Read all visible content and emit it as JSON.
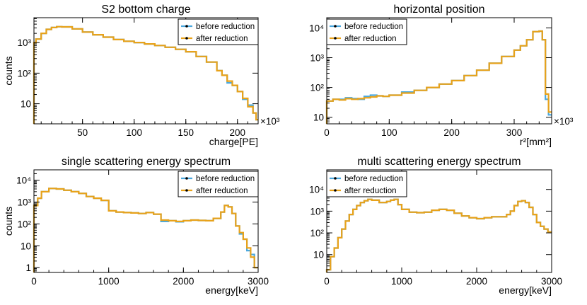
{
  "colors": {
    "before": "#4aa8de",
    "after": "#e8a21a",
    "axis": "#000000"
  },
  "chart_data": [
    {
      "type": "line",
      "style": "step-histogram",
      "title": "S2 bottom charge",
      "xlabel": "charge[PE]",
      "ylabel": "counts",
      "x_multiplier_label": "×10³",
      "xlim": [
        3,
        220
      ],
      "ylog": true,
      "ylim": [
        2.2,
        6500
      ],
      "xticks": [
        50,
        100,
        150,
        200
      ],
      "xtick_labels": [
        "50",
        "100",
        "150",
        "200"
      ],
      "yticks": [
        10,
        100,
        1000
      ],
      "ytick_labels": [
        "10",
        "10²",
        "10³"
      ],
      "legend": {
        "position": "top-right",
        "entries": [
          "before reduction",
          "after reduction"
        ]
      },
      "series": [
        {
          "name": "after reduction",
          "x": [
            3,
            5,
            10,
            15,
            20,
            25,
            30,
            40,
            50,
            60,
            70,
            80,
            90,
            100,
            110,
            120,
            130,
            140,
            150,
            160,
            170,
            180,
            185,
            190,
            195,
            200,
            205,
            210,
            215,
            218
          ],
          "values": [
            1000,
            1300,
            2000,
            2700,
            3100,
            3300,
            3250,
            2800,
            2200,
            1800,
            1500,
            1250,
            1100,
            1000,
            900,
            800,
            700,
            600,
            500,
            350,
            230,
            120,
            85,
            55,
            40,
            25,
            15,
            8,
            5,
            3
          ]
        },
        {
          "name": "before reduction",
          "x": [
            3,
            5,
            10,
            15,
            20,
            25,
            30,
            40,
            50,
            60,
            70,
            80,
            90,
            100,
            110,
            120,
            130,
            140,
            150,
            160,
            170,
            180,
            185,
            190,
            195,
            200,
            205,
            210,
            215,
            218
          ],
          "values": [
            1000,
            1300,
            2000,
            2700,
            3100,
            3300,
            3250,
            2800,
            2200,
            1800,
            1500,
            1250,
            1100,
            1000,
            900,
            800,
            700,
            600,
            500,
            350,
            230,
            120,
            85,
            48,
            40,
            25,
            14,
            9,
            5,
            3
          ]
        }
      ]
    },
    {
      "type": "line",
      "style": "step-histogram",
      "title": "horizontal position",
      "xlabel": "r²[mm²]",
      "ylabel": "",
      "x_multiplier_label": "×10³",
      "xlim": [
        0,
        360
      ],
      "ylog": true,
      "ylim": [
        6,
        22000
      ],
      "xticks": [
        0,
        100,
        200,
        300
      ],
      "xtick_labels": [
        "0",
        "100",
        "200",
        "300"
      ],
      "yticks": [
        10,
        100,
        1000,
        10000
      ],
      "ytick_labels": [
        "10",
        "10²",
        "10³",
        "10⁴"
      ],
      "legend": {
        "position": "top-left",
        "entries": [
          "before reduction",
          "after reduction"
        ]
      },
      "series": [
        {
          "name": "after reduction",
          "x": [
            0,
            10,
            20,
            30,
            40,
            50,
            60,
            70,
            80,
            90,
            100,
            120,
            140,
            160,
            180,
            200,
            220,
            240,
            260,
            280,
            300,
            310,
            320,
            330,
            340,
            345,
            350,
            355
          ],
          "values": [
            35,
            40,
            38,
            42,
            40,
            42,
            45,
            48,
            52,
            50,
            55,
            65,
            80,
            100,
            130,
            170,
            250,
            380,
            650,
            1100,
            1800,
            2500,
            4000,
            7500,
            7800,
            4000,
            60,
            15
          ]
        },
        {
          "name": "before reduction",
          "x": [
            0,
            10,
            20,
            30,
            40,
            50,
            60,
            70,
            80,
            90,
            100,
            120,
            140,
            160,
            180,
            200,
            220,
            240,
            260,
            280,
            300,
            310,
            320,
            330,
            340,
            345,
            350,
            355
          ],
          "values": [
            35,
            40,
            40,
            45,
            42,
            40,
            50,
            55,
            52,
            50,
            55,
            70,
            80,
            100,
            130,
            170,
            250,
            380,
            650,
            1100,
            1800,
            2500,
            4000,
            7500,
            7800,
            4000,
            40,
            12
          ]
        }
      ]
    },
    {
      "type": "line",
      "style": "step-histogram",
      "title": "single scattering energy spectrum",
      "xlabel": "energy[keV]",
      "ylabel": "counts",
      "xlim": [
        0,
        3000
      ],
      "ylog": true,
      "ylim": [
        0.6,
        30000
      ],
      "xticks": [
        0,
        1000,
        2000,
        3000
      ],
      "xtick_labels": [
        "0",
        "1000",
        "2000",
        "3000"
      ],
      "yticks": [
        1,
        10,
        100,
        1000,
        10000
      ],
      "ytick_labels": [
        "1",
        "10",
        "10²",
        "10³",
        "10⁴"
      ],
      "legend": {
        "position": "top-right",
        "entries": [
          "before reduction",
          "after reduction"
        ]
      },
      "series": [
        {
          "name": "after reduction",
          "x": [
            0,
            50,
            100,
            200,
            300,
            400,
            500,
            600,
            700,
            800,
            900,
            1000,
            1100,
            1200,
            1300,
            1400,
            1500,
            1600,
            1700,
            1800,
            1900,
            2000,
            2100,
            2200,
            2300,
            2400,
            2500,
            2550,
            2600,
            2650,
            2700,
            2750,
            2800,
            2850,
            2900,
            2950
          ],
          "values": [
            700,
            1500,
            3000,
            4200,
            4000,
            3500,
            3000,
            2500,
            1800,
            1500,
            1200,
            400,
            350,
            330,
            320,
            300,
            330,
            280,
            150,
            140,
            130,
            140,
            150,
            145,
            140,
            180,
            350,
            700,
            600,
            300,
            80,
            40,
            20,
            8,
            3,
            1
          ]
        },
        {
          "name": "before reduction",
          "x": [
            0,
            50,
            100,
            200,
            300,
            400,
            500,
            600,
            700,
            800,
            900,
            1000,
            1100,
            1200,
            1300,
            1400,
            1500,
            1600,
            1700,
            1800,
            1900,
            2000,
            2100,
            2200,
            2300,
            2400,
            2500,
            2550,
            2600,
            2650,
            2700,
            2750,
            2800,
            2850,
            2900,
            2950
          ],
          "values": [
            700,
            1500,
            3000,
            4200,
            4000,
            3500,
            3000,
            2500,
            1800,
            1500,
            1200,
            400,
            350,
            330,
            320,
            300,
            330,
            280,
            130,
            140,
            125,
            140,
            150,
            145,
            140,
            180,
            350,
            700,
            600,
            300,
            80,
            35,
            20,
            6,
            4,
            1
          ]
        }
      ]
    },
    {
      "type": "line",
      "style": "step-histogram",
      "title": "multi scattering energy spectrum",
      "xlabel": "energy[keV]",
      "ylabel": "",
      "xlim": [
        0,
        3000
      ],
      "ylog": true,
      "ylim": [
        1.5,
        80000
      ],
      "xticks": [
        0,
        1000,
        2000,
        3000
      ],
      "xtick_labels": [
        "0",
        "1000",
        "2000",
        "3000"
      ],
      "yticks": [
        10,
        100,
        1000,
        10000
      ],
      "ytick_labels": [
        "10",
        "10²",
        "10³",
        "10⁴"
      ],
      "legend": {
        "position": "top-left",
        "entries": [
          "before reduction",
          "after reduction"
        ]
      },
      "series": [
        {
          "name": "after reduction",
          "x": [
            0,
            50,
            100,
            150,
            200,
            250,
            300,
            350,
            400,
            450,
            500,
            550,
            600,
            700,
            800,
            850,
            900,
            950,
            1000,
            1100,
            1200,
            1300,
            1400,
            1500,
            1600,
            1700,
            1800,
            1900,
            2000,
            2100,
            2200,
            2300,
            2400,
            2450,
            2500,
            2550,
            2600,
            2650,
            2700,
            2750,
            2800,
            2850,
            2900,
            2950
          ],
          "values": [
            2,
            8,
            20,
            60,
            150,
            350,
            700,
            1200,
            1800,
            2500,
            3000,
            3500,
            3200,
            2500,
            2800,
            3200,
            3500,
            2000,
            1200,
            900,
            850,
            900,
            1100,
            1200,
            1100,
            800,
            600,
            500,
            450,
            500,
            550,
            550,
            700,
            1000,
            1800,
            2800,
            3000,
            2500,
            1500,
            700,
            300,
            200,
            150,
            110
          ]
        },
        {
          "name": "before reduction",
          "x": [
            0,
            50,
            100,
            150,
            200,
            250,
            300,
            350,
            400,
            450,
            500,
            550,
            600,
            700,
            800,
            850,
            900,
            950,
            1000,
            1100,
            1200,
            1300,
            1400,
            1500,
            1600,
            1700,
            1800,
            1900,
            2000,
            2100,
            2200,
            2300,
            2400,
            2450,
            2500,
            2550,
            2600,
            2650,
            2700,
            2750,
            2800,
            2850,
            2900,
            2950
          ],
          "values": [
            2,
            8,
            20,
            60,
            150,
            350,
            700,
            1200,
            1800,
            2500,
            3000,
            3500,
            3200,
            2500,
            2800,
            3200,
            3500,
            2000,
            1200,
            900,
            850,
            900,
            1100,
            1200,
            1100,
            800,
            600,
            500,
            450,
            500,
            550,
            550,
            700,
            1000,
            1800,
            2800,
            3000,
            2500,
            1500,
            700,
            300,
            200,
            150,
            110
          ]
        }
      ]
    }
  ]
}
